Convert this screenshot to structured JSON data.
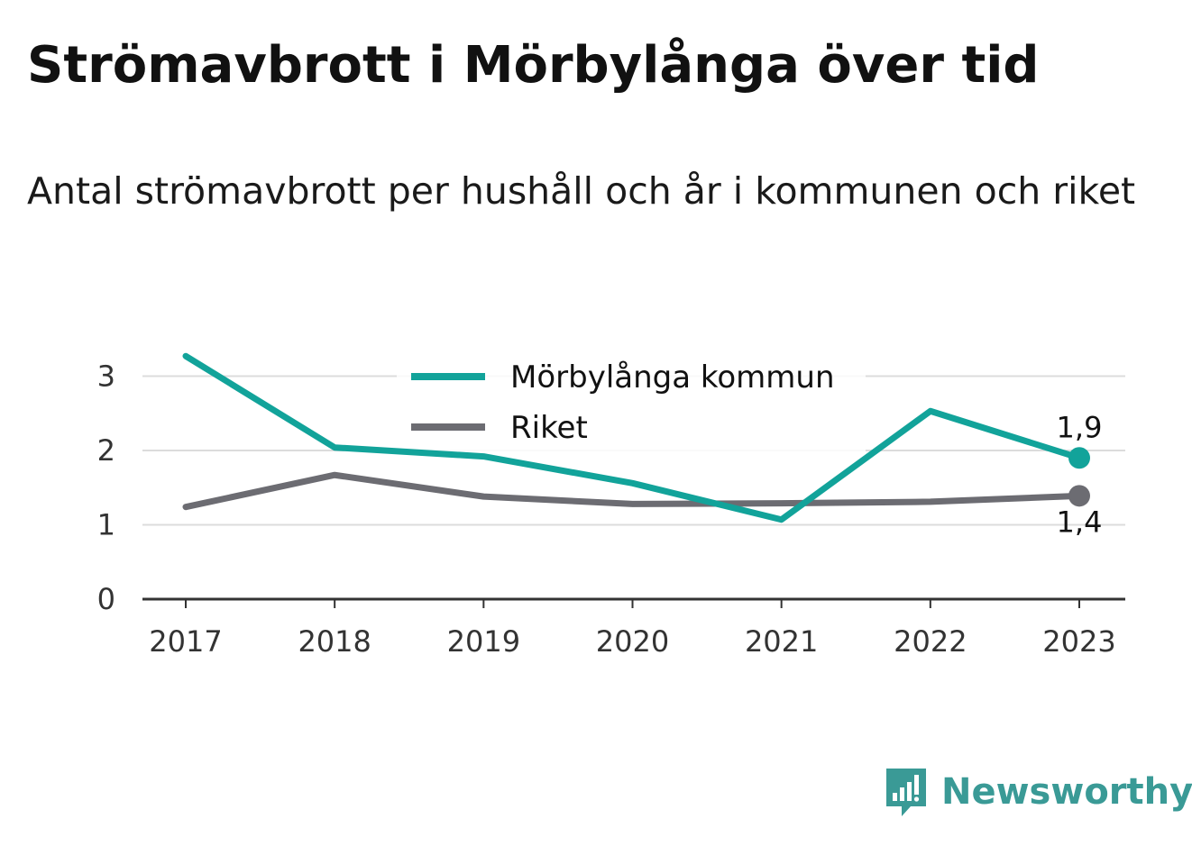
{
  "title": "Strömavbrott i Mörbylånga över tid",
  "subtitle": "Antal strömavbrott per hushåll och år i kommunen och riket",
  "brand": {
    "name": "Newsworthy",
    "icon": "newsworthy-logo-icon",
    "color": "#3a9a96"
  },
  "chart_data": {
    "type": "line",
    "x": [
      "2017",
      "2018",
      "2019",
      "2020",
      "2021",
      "2022",
      "2023"
    ],
    "series": [
      {
        "name": "Mörbylånga kommun",
        "color": "#12a39a",
        "values": [
          3.27,
          2.04,
          1.92,
          1.56,
          1.07,
          2.53,
          1.9
        ],
        "end_label": "1,9"
      },
      {
        "name": "Riket",
        "color": "#6c6c72",
        "values": [
          1.24,
          1.67,
          1.38,
          1.28,
          1.29,
          1.31,
          1.39
        ],
        "end_label": "1,4"
      }
    ],
    "yticks": [
      0,
      1,
      2,
      3
    ],
    "ylim": [
      0,
      3.27
    ],
    "grid": true,
    "legend_position": "top-center",
    "xlabel": "",
    "ylabel": ""
  }
}
